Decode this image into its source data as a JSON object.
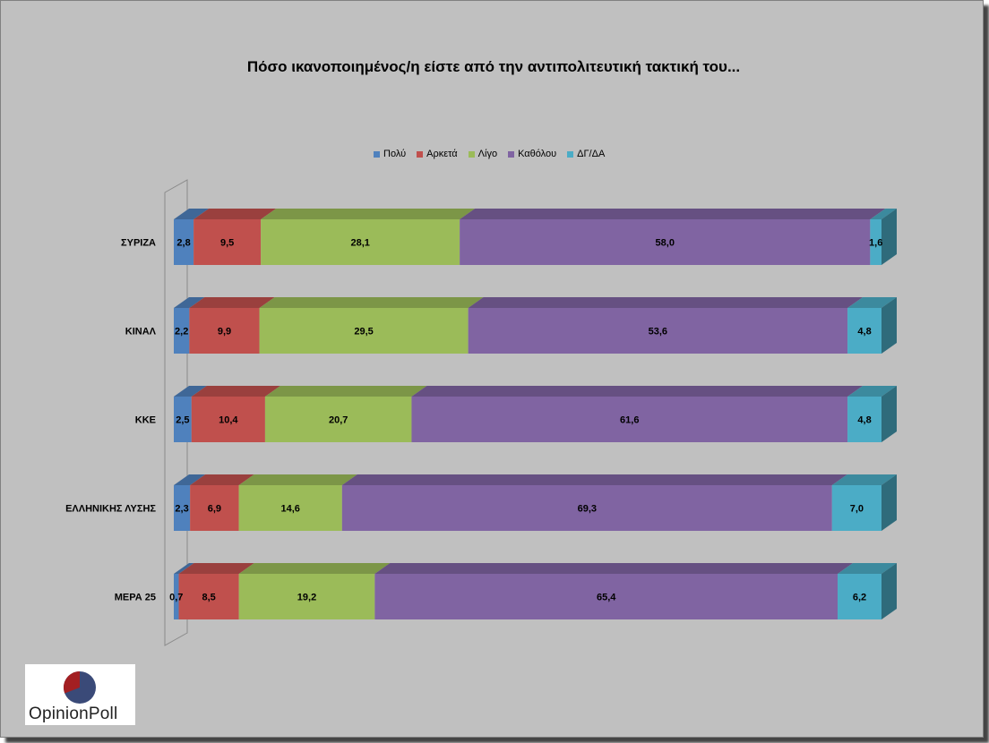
{
  "chart_data": {
    "type": "bar",
    "orientation": "horizontal",
    "stacked": true,
    "title": "Πόσο ικανοποιημένος/η είστε από την αντιπολιτευτική τακτική του...",
    "categories": [
      "ΣΥΡΙΖΑ",
      "ΚΙΝΑΛ",
      "ΚΚΕ",
      "ΕΛΛΗΝΙΚΗΣ ΛΥΣΗΣ",
      "ΜΕΡΑ 25"
    ],
    "series": [
      {
        "name": "Πολύ",
        "color": "#4f81bd",
        "values": [
          2.8,
          2.2,
          2.5,
          2.3,
          0.7
        ],
        "labels": [
          "2,8",
          "2,2",
          "2,5",
          "2,3",
          "0,7"
        ]
      },
      {
        "name": "Αρκετά",
        "color": "#c0504d",
        "values": [
          9.5,
          9.9,
          10.4,
          6.9,
          8.5
        ],
        "labels": [
          "9,5",
          "9,9",
          "10,4",
          "6,9",
          "8,5"
        ]
      },
      {
        "name": "Λίγο",
        "color": "#9bbb59",
        "values": [
          28.1,
          29.5,
          20.7,
          14.6,
          19.2
        ],
        "labels": [
          "28,1",
          "29,5",
          "20,7",
          "14,6",
          "19,2"
        ]
      },
      {
        "name": "Καθόλου",
        "color": "#8064a2",
        "values": [
          58.0,
          53.6,
          61.6,
          69.3,
          65.4
        ],
        "labels": [
          "58,0",
          "53,6",
          "61,6",
          "69,3",
          "65,4"
        ]
      },
      {
        "name": "ΔΓ/ΔΑ",
        "color": "#4bacc6",
        "values": [
          1.6,
          4.8,
          4.8,
          7.0,
          6.2
        ],
        "labels": [
          "1,6",
          "4,8",
          "4,8",
          "7,0",
          "6,2"
        ]
      }
    ],
    "xlim": [
      0,
      100
    ],
    "legend_position": "top",
    "grid": false,
    "style": "3d"
  },
  "logo": {
    "text": "OpinionPoll"
  }
}
